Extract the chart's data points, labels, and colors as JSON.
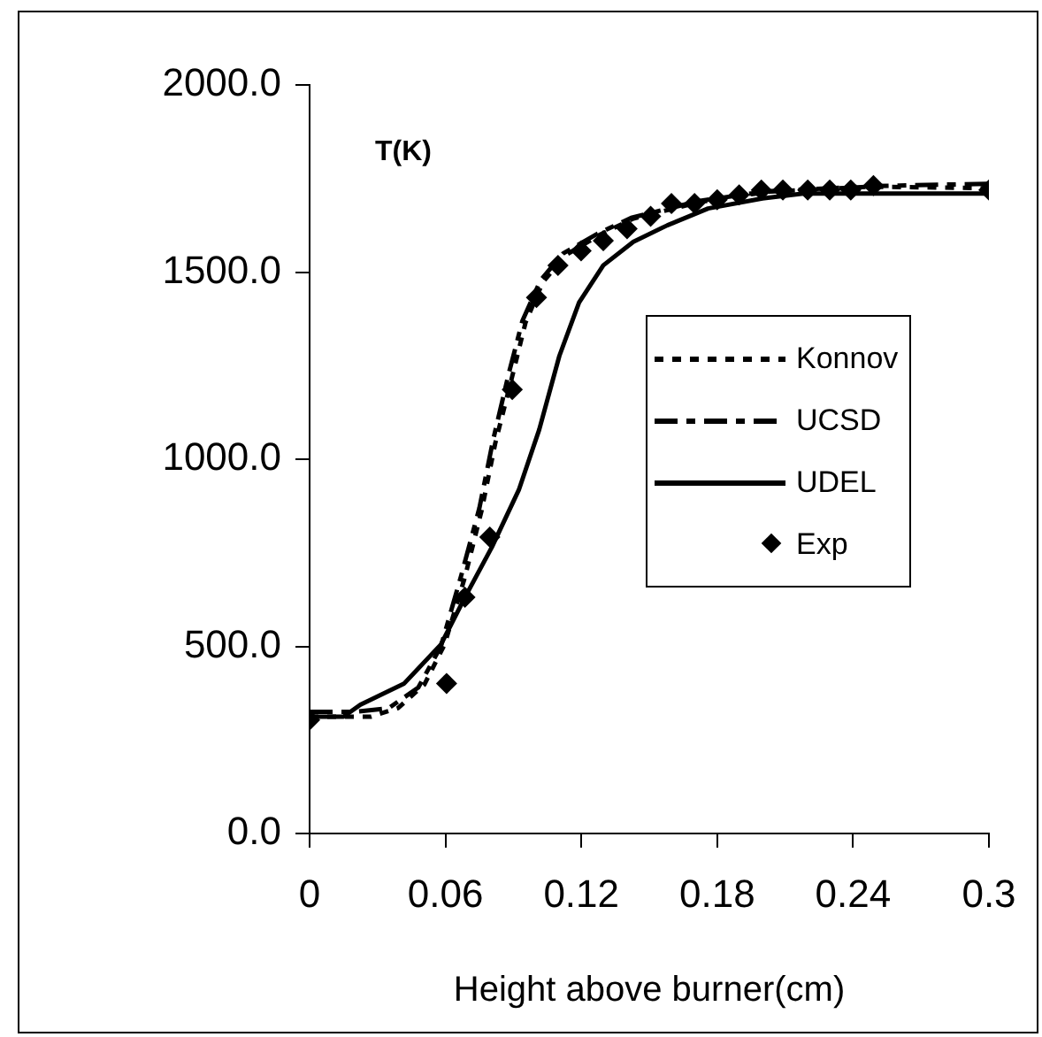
{
  "chart_data": {
    "type": "line",
    "xlabel": "Height above burner(cm)",
    "annotations": [
      "T(K)"
    ],
    "xlim": [
      0,
      0.3
    ],
    "xticks": [
      0,
      0.06,
      0.12,
      0.18,
      0.24,
      0.3
    ],
    "ylim": [
      0,
      2000
    ],
    "yticks": [
      {
        "value": 0,
        "label": "0.0"
      },
      {
        "value": 500,
        "label": "500.0"
      },
      {
        "value": 1000,
        "label": "1000.0"
      },
      {
        "value": 1500,
        "label": "1500.0"
      },
      {
        "value": 2000,
        "label": "2000.0"
      }
    ],
    "grid": false,
    "legend": "right",
    "series": [
      {
        "name": "Konnov",
        "color": "#000000",
        "line_style": "dotted",
        "marker": "none",
        "x": [
          0,
          0.027,
          0.039,
          0.0507,
          0.0596,
          0.0686,
          0.076,
          0.082,
          0.0895,
          0.0954,
          0.103,
          0.113,
          0.128,
          0.143,
          0.173,
          0.203,
          0.248,
          0.3
        ],
        "values": [
          312,
          312,
          335,
          398,
          505,
          685,
          864,
          1043,
          1222,
          1366,
          1473,
          1545,
          1599,
          1643,
          1688,
          1715,
          1728,
          1724
        ]
      },
      {
        "name": "UCSD",
        "color": "#000000",
        "line_style": "dashed",
        "marker": "none",
        "x": [
          0,
          0.02,
          0.035,
          0.048,
          0.058,
          0.067,
          0.075,
          0.081,
          0.088,
          0.094,
          0.102,
          0.112,
          0.127,
          0.142,
          0.172,
          0.202,
          0.25,
          0.3
        ],
        "values": [
          325,
          325,
          335,
          390,
          500,
          690,
          870,
          1050,
          1230,
          1370,
          1478,
          1550,
          1602,
          1645,
          1690,
          1716,
          1730,
          1736
        ]
      },
      {
        "name": "UDEL",
        "color": "#000000",
        "line_style": "solid",
        "marker": "none",
        "x": [
          0,
          0.015,
          0.0224,
          0.0418,
          0.058,
          0.0686,
          0.0805,
          0.0924,
          0.1014,
          0.1103,
          0.119,
          0.1297,
          0.143,
          0.158,
          0.176,
          0.2,
          0.218,
          0.248,
          0.3
        ],
        "values": [
          312,
          312,
          344,
          401,
          505,
          631,
          765,
          918,
          1079,
          1276,
          1419,
          1518,
          1581,
          1625,
          1670,
          1697,
          1710,
          1710,
          1710
        ]
      },
      {
        "name": "Exp",
        "color": "#000000",
        "type": "scatter",
        "marker": "diamond",
        "x": [
          0,
          0.0605,
          0.0686,
          0.0796,
          0.0895,
          0.1002,
          0.1097,
          0.1199,
          0.1297,
          0.1402,
          0.1506,
          0.1598,
          0.17,
          0.18,
          0.1897,
          0.1995,
          0.209,
          0.22,
          0.2297,
          0.239,
          0.249,
          0.3
        ],
        "values": [
          303,
          401,
          631,
          792,
          1186,
          1432,
          1518,
          1557,
          1584,
          1616,
          1649,
          1683,
          1683,
          1693,
          1706,
          1719,
          1719,
          1719,
          1719,
          1719,
          1731,
          1719
        ]
      }
    ]
  }
}
